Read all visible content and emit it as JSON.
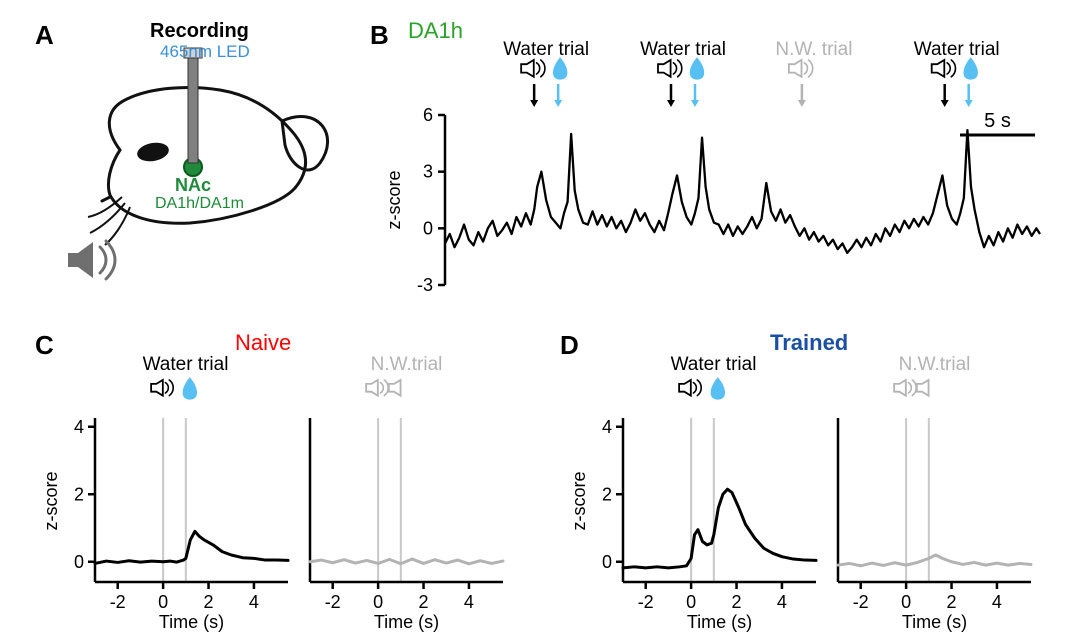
{
  "panelA": {
    "label": "A",
    "recording_title": "Recording",
    "led_label": "465nm LED",
    "nac_label": "NAc",
    "sensor_label": "DA1h/DA1m",
    "colors": {
      "recording_text": "#000000",
      "led_text": "#3b8fd6",
      "nac_text": "#1f8a3a",
      "sensor_text": "#1f8a3a",
      "mouse_outline": "#111111",
      "eye_fill": "#111111",
      "nac_fill": "#1f8a3a",
      "probe": "#555555",
      "speaker": "#6f6f6f"
    }
  },
  "panelB": {
    "label": "B",
    "sensor_title": "DA1h",
    "sensor_color": "#29a329",
    "trials": [
      {
        "type": "water",
        "x": 0.17,
        "label": "Water trial"
      },
      {
        "type": "water",
        "x": 0.4,
        "label": "Water trial"
      },
      {
        "type": "nw",
        "x": 0.62,
        "label": "N.W. trial"
      },
      {
        "type": "water",
        "x": 0.86,
        "label": "Water trial"
      }
    ],
    "scale_bar": "5 s",
    "ylabel": "z-score",
    "y_ticks": [
      -3,
      0,
      3,
      6
    ],
    "ylim": [
      -3,
      6
    ],
    "colors": {
      "trace": "#000000",
      "axes": "#000000",
      "water_text": "#000000",
      "nw_text": "#b3b3b3",
      "drop": "#58bff2",
      "speaker_active": "#000000",
      "speaker_gray": "#b3b3b3"
    },
    "trace_points": [
      [
        0.0,
        -0.8
      ],
      [
        0.008,
        -0.3
      ],
      [
        0.016,
        -1.0
      ],
      [
        0.024,
        -0.5
      ],
      [
        0.032,
        0.2
      ],
      [
        0.04,
        -0.6
      ],
      [
        0.048,
        -0.9
      ],
      [
        0.056,
        -0.2
      ],
      [
        0.064,
        -0.7
      ],
      [
        0.072,
        0.0
      ],
      [
        0.08,
        0.4
      ],
      [
        0.088,
        -0.4
      ],
      [
        0.096,
        -0.1
      ],
      [
        0.104,
        0.3
      ],
      [
        0.112,
        -0.3
      ],
      [
        0.12,
        0.6
      ],
      [
        0.128,
        0.1
      ],
      [
        0.136,
        0.8
      ],
      [
        0.144,
        0.2
      ],
      [
        0.15,
        1.0
      ],
      [
        0.155,
        2.2
      ],
      [
        0.162,
        3.0
      ],
      [
        0.17,
        1.5
      ],
      [
        0.178,
        0.6
      ],
      [
        0.186,
        0.3
      ],
      [
        0.194,
        0.0
      ],
      [
        0.2,
        0.8
      ],
      [
        0.206,
        1.4
      ],
      [
        0.212,
        5.0
      ],
      [
        0.218,
        2.0
      ],
      [
        0.224,
        1.0
      ],
      [
        0.232,
        0.3
      ],
      [
        0.24,
        0.2
      ],
      [
        0.248,
        0.9
      ],
      [
        0.256,
        0.2
      ],
      [
        0.264,
        0.7
      ],
      [
        0.272,
        0.1
      ],
      [
        0.28,
        0.6
      ],
      [
        0.288,
        0.0
      ],
      [
        0.296,
        0.4
      ],
      [
        0.304,
        -0.2
      ],
      [
        0.312,
        0.3
      ],
      [
        0.32,
        1.0
      ],
      [
        0.328,
        0.4
      ],
      [
        0.336,
        0.8
      ],
      [
        0.344,
        0.2
      ],
      [
        0.352,
        -0.2
      ],
      [
        0.36,
        0.4
      ],
      [
        0.368,
        -0.1
      ],
      [
        0.375,
        0.8
      ],
      [
        0.382,
        1.8
      ],
      [
        0.39,
        2.8
      ],
      [
        0.398,
        1.4
      ],
      [
        0.406,
        0.6
      ],
      [
        0.414,
        0.2
      ],
      [
        0.42,
        0.8
      ],
      [
        0.426,
        1.6
      ],
      [
        0.432,
        4.8
      ],
      [
        0.438,
        2.2
      ],
      [
        0.444,
        1.0
      ],
      [
        0.452,
        0.3
      ],
      [
        0.46,
        0.2
      ],
      [
        0.468,
        -0.3
      ],
      [
        0.476,
        0.2
      ],
      [
        0.484,
        -0.4
      ],
      [
        0.492,
        0.1
      ],
      [
        0.5,
        -0.3
      ],
      [
        0.508,
        0.1
      ],
      [
        0.516,
        0.6
      ],
      [
        0.524,
        0.0
      ],
      [
        0.532,
        0.5
      ],
      [
        0.54,
        2.4
      ],
      [
        0.548,
        0.9
      ],
      [
        0.556,
        0.4
      ],
      [
        0.564,
        1.0
      ],
      [
        0.572,
        0.3
      ],
      [
        0.58,
        0.7
      ],
      [
        0.588,
        0.1
      ],
      [
        0.596,
        -0.4
      ],
      [
        0.604,
        0.0
      ],
      [
        0.612,
        -0.6
      ],
      [
        0.62,
        -0.2
      ],
      [
        0.628,
        -0.7
      ],
      [
        0.636,
        -0.4
      ],
      [
        0.644,
        -0.9
      ],
      [
        0.652,
        -0.6
      ],
      [
        0.66,
        -1.1
      ],
      [
        0.668,
        -0.8
      ],
      [
        0.676,
        -1.3
      ],
      [
        0.684,
        -1.0
      ],
      [
        0.692,
        -0.6
      ],
      [
        0.7,
        -1.0
      ],
      [
        0.708,
        -0.5
      ],
      [
        0.716,
        -0.9
      ],
      [
        0.724,
        -0.3
      ],
      [
        0.732,
        -0.7
      ],
      [
        0.74,
        0.0
      ],
      [
        0.748,
        -0.4
      ],
      [
        0.756,
        0.2
      ],
      [
        0.764,
        -0.2
      ],
      [
        0.772,
        0.4
      ],
      [
        0.78,
        0.0
      ],
      [
        0.788,
        0.5
      ],
      [
        0.796,
        0.1
      ],
      [
        0.804,
        0.6
      ],
      [
        0.812,
        0.2
      ],
      [
        0.82,
        0.8
      ],
      [
        0.828,
        1.8
      ],
      [
        0.836,
        2.8
      ],
      [
        0.844,
        1.2
      ],
      [
        0.852,
        0.5
      ],
      [
        0.86,
        0.2
      ],
      [
        0.866,
        0.8
      ],
      [
        0.872,
        1.6
      ],
      [
        0.878,
        5.2
      ],
      [
        0.884,
        2.2
      ],
      [
        0.89,
        1.0
      ],
      [
        0.898,
        -0.2
      ],
      [
        0.906,
        -1.0
      ],
      [
        0.914,
        -0.4
      ],
      [
        0.922,
        -0.9
      ],
      [
        0.93,
        -0.2
      ],
      [
        0.938,
        -0.7
      ],
      [
        0.946,
        0.0
      ],
      [
        0.954,
        -0.5
      ],
      [
        0.962,
        0.2
      ],
      [
        0.97,
        -0.3
      ],
      [
        0.978,
        0.1
      ],
      [
        0.986,
        -0.4
      ],
      [
        0.994,
        0.0
      ],
      [
        1.0,
        -0.3
      ]
    ]
  },
  "panelC": {
    "label": "C",
    "condition": "Naive",
    "condition_color": "#ff0000",
    "water_label": "Water trial",
    "nw_label": "N.W.trial",
    "ylabel": "z-score",
    "xlabel": "Time (s)",
    "x_ticks": [
      -2,
      0,
      2,
      4
    ],
    "y_ticks": [
      0,
      2,
      4
    ],
    "xlim": [
      -3,
      5.5
    ],
    "ylim": [
      -0.6,
      4.2
    ],
    "event_lines": [
      0,
      1
    ],
    "colors": {
      "trace_water": "#000000",
      "trace_nw": "#b3b3b3",
      "axes": "#000000",
      "guide": "#c8c8c8",
      "drop": "#58bff2"
    },
    "water_trace": [
      [
        -3.0,
        -0.05
      ],
      [
        -2.5,
        0.02
      ],
      [
        -2.0,
        -0.02
      ],
      [
        -1.5,
        0.03
      ],
      [
        -1.0,
        -0.01
      ],
      [
        -0.5,
        0.02
      ],
      [
        0.0,
        0.0
      ],
      [
        0.3,
        0.02
      ],
      [
        0.6,
        -0.01
      ],
      [
        0.9,
        0.05
      ],
      [
        1.0,
        0.1
      ],
      [
        1.2,
        0.65
      ],
      [
        1.4,
        0.9
      ],
      [
        1.6,
        0.75
      ],
      [
        1.8,
        0.65
      ],
      [
        2.2,
        0.5
      ],
      [
        2.6,
        0.3
      ],
      [
        3.0,
        0.2
      ],
      [
        3.5,
        0.12
      ],
      [
        4.0,
        0.1
      ],
      [
        4.5,
        0.05
      ],
      [
        5.0,
        0.05
      ],
      [
        5.5,
        0.04
      ]
    ],
    "nw_trace": [
      [
        -3.0,
        0.0
      ],
      [
        -2.5,
        0.05
      ],
      [
        -2.0,
        -0.03
      ],
      [
        -1.5,
        0.06
      ],
      [
        -1.0,
        -0.04
      ],
      [
        -0.5,
        0.04
      ],
      [
        0.0,
        -0.05
      ],
      [
        0.5,
        0.07
      ],
      [
        1.0,
        -0.06
      ],
      [
        1.5,
        0.08
      ],
      [
        2.0,
        -0.05
      ],
      [
        2.5,
        0.06
      ],
      [
        3.0,
        -0.04
      ],
      [
        3.5,
        0.05
      ],
      [
        4.0,
        -0.06
      ],
      [
        4.5,
        0.03
      ],
      [
        5.0,
        -0.05
      ],
      [
        5.5,
        0.02
      ]
    ]
  },
  "panelD": {
    "label": "D",
    "condition": "Trained",
    "condition_color": "#1a4fa3",
    "water_label": "Water trial",
    "nw_label": "N.W.trial",
    "ylabel": "z-score",
    "xlabel": "Time (s)",
    "x_ticks": [
      -2,
      0,
      2,
      4
    ],
    "y_ticks": [
      0,
      2,
      4
    ],
    "xlim": [
      -3,
      5.5
    ],
    "ylim": [
      -0.6,
      4.2
    ],
    "event_lines": [
      0,
      1
    ],
    "colors": {
      "trace_water": "#000000",
      "trace_nw": "#b3b3b3",
      "axes": "#000000",
      "guide": "#c8c8c8",
      "drop": "#58bff2"
    },
    "water_trace": [
      [
        -3.0,
        -0.18
      ],
      [
        -2.5,
        -0.15
      ],
      [
        -2.0,
        -0.18
      ],
      [
        -1.5,
        -0.15
      ],
      [
        -1.0,
        -0.18
      ],
      [
        -0.5,
        -0.15
      ],
      [
        -0.2,
        -0.12
      ],
      [
        0.0,
        0.1
      ],
      [
        0.15,
        0.8
      ],
      [
        0.3,
        0.95
      ],
      [
        0.5,
        0.6
      ],
      [
        0.7,
        0.5
      ],
      [
        0.9,
        0.55
      ],
      [
        1.0,
        0.8
      ],
      [
        1.2,
        1.6
      ],
      [
        1.4,
        2.0
      ],
      [
        1.6,
        2.15
      ],
      [
        1.8,
        2.05
      ],
      [
        2.1,
        1.6
      ],
      [
        2.4,
        1.1
      ],
      [
        2.8,
        0.7
      ],
      [
        3.2,
        0.4
      ],
      [
        3.6,
        0.25
      ],
      [
        4.0,
        0.15
      ],
      [
        4.5,
        0.08
      ],
      [
        5.0,
        0.05
      ],
      [
        5.5,
        0.04
      ]
    ],
    "nw_trace": [
      [
        -3.0,
        -0.1
      ],
      [
        -2.5,
        -0.05
      ],
      [
        -2.0,
        -0.12
      ],
      [
        -1.5,
        -0.04
      ],
      [
        -1.0,
        -0.11
      ],
      [
        -0.5,
        -0.03
      ],
      [
        0.0,
        -0.1
      ],
      [
        0.5,
        -0.02
      ],
      [
        1.0,
        0.1
      ],
      [
        1.3,
        0.2
      ],
      [
        1.6,
        0.1
      ],
      [
        2.0,
        0.0
      ],
      [
        2.5,
        -0.08
      ],
      [
        3.0,
        -0.02
      ],
      [
        3.5,
        -0.1
      ],
      [
        4.0,
        -0.04
      ],
      [
        4.5,
        -0.1
      ],
      [
        5.0,
        -0.05
      ],
      [
        5.5,
        -0.08
      ]
    ]
  },
  "layout": {
    "label_fontsize": 26,
    "axis_fontsize": 18,
    "title_fontsize": 20,
    "line_width": 2.5
  }
}
